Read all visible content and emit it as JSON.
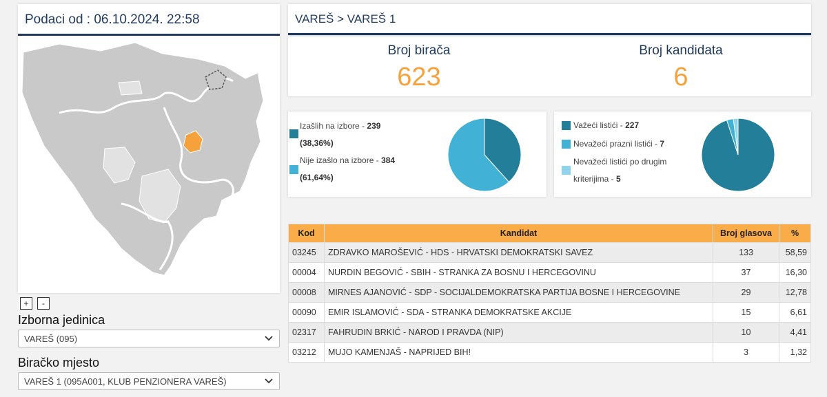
{
  "left": {
    "data_title": "Podaci od : 06.10.2024. 22:58",
    "zoom_in": "+",
    "zoom_out": "-",
    "unit_label": "Izborna jedinica",
    "unit_value": "VAREŠ (095)",
    "station_label": "Biračko mjesto",
    "station_value": "VAREŠ 1 (095A001, KLUB PENZIONERA VAREŠ)"
  },
  "header": {
    "breadcrumb": "VAREŠ > VAREŠ 1"
  },
  "stats": {
    "voters_label": "Broj birača",
    "voters_value": "623",
    "candidates_label": "Broj kandidata",
    "candidates_value": "6"
  },
  "turnout": {
    "voted_label": "Izašlih na izbore - ",
    "voted_count": "239",
    "voted_pct": "(38,36%)",
    "not_voted_label": "Nije izašlo na izbore - ",
    "not_voted_count": "384",
    "not_voted_pct": "(61,64%)",
    "values": [
      239,
      384
    ],
    "colors": [
      "#237f99",
      "#41b1d6"
    ]
  },
  "ballots": {
    "valid_label": "Važeći listići - ",
    "valid_count": "227",
    "blank_label": "Nevažeći prazni listići - ",
    "blank_count": "7",
    "other_label_1": "Nevažeći listići po drugim",
    "other_label_2": "kriterijima - ",
    "other_count": "5",
    "values": [
      227,
      7,
      5
    ],
    "colors": [
      "#237f99",
      "#41b1d6",
      "#8fd4ea"
    ]
  },
  "table": {
    "headers": {
      "code": "Kod",
      "candidate": "Kandidat",
      "votes": "Broj glasova",
      "pct": "%"
    },
    "rows": [
      {
        "code": "03245",
        "name": "ZDRAVKO MAROŠEVIĆ - HDS - HRVATSKI DEMOKRATSKI SAVEZ",
        "votes": "133",
        "pct": "58,59"
      },
      {
        "code": "00004",
        "name": "NURDIN BEGOVIĆ - SBIH - STRANKA ZA BOSNU I HERCEGOVINU",
        "votes": "37",
        "pct": "16,30"
      },
      {
        "code": "00008",
        "name": "MIRNES AJANOVIĆ - SDP - SOCIJALDEMOKRATSKA PARTIJA BOSNE I HERCEGOVINE",
        "votes": "29",
        "pct": "12,78"
      },
      {
        "code": "00090",
        "name": "EMIR ISLAMOVIĆ - SDA - STRANKA DEMOKRATSKE AKCIJE",
        "votes": "15",
        "pct": "6,61"
      },
      {
        "code": "02317",
        "name": "FAHRUDIN BRKIĆ - NAROD I PRAVDA (NIP)",
        "votes": "10",
        "pct": "4,41"
      },
      {
        "code": "03212",
        "name": "MUJO KAMENJAŠ - NAPRIJED BIH!",
        "votes": "3",
        "pct": "1,32"
      }
    ]
  },
  "map_colors": {
    "base": "#c9c9c9",
    "light": "#e2e2e2",
    "selected": "#f5a23c",
    "border": "#ffffff",
    "brcko": "#555555"
  }
}
